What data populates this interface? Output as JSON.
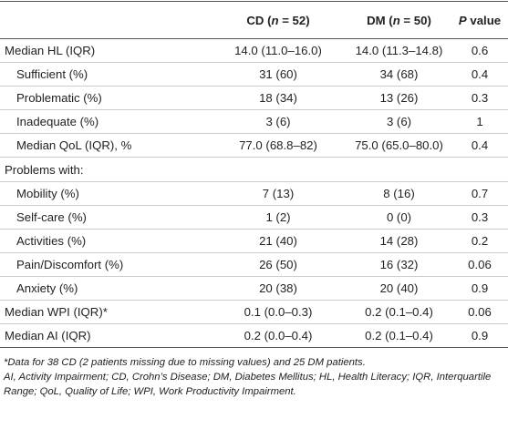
{
  "table": {
    "header": [
      {
        "text": "",
        "parts": []
      },
      {
        "parts": [
          "CD (",
          "n",
          " = 52)"
        ]
      },
      {
        "parts": [
          "DM (",
          "n",
          " = 50)"
        ]
      },
      {
        "parts": [
          "P",
          " value"
        ]
      }
    ],
    "rows": [
      [
        "Median HL (IQR)",
        "14.0 (11.0–16.0)",
        "14.0 (11.3–14.8)",
        "0.6"
      ],
      [
        "Sufficient (%)",
        "31 (60)",
        "34 (68)",
        "0.4"
      ],
      [
        "Problematic (%)",
        "18 (34)",
        "13 (26)",
        "0.3"
      ],
      [
        "Inadequate (%)",
        "3 (6)",
        "3 (6)",
        "1"
      ],
      [
        "Median QoL (IQR), %",
        "77.0 (68.8–82)",
        "75.0 (65.0–80.0)",
        "0.4"
      ],
      [
        "Problems with:"
      ],
      [
        "Mobility (%)",
        "7 (13)",
        "8 (16)",
        "0.7"
      ],
      [
        "Self-care (%)",
        "1 (2)",
        "0 (0)",
        "0.3"
      ],
      [
        "Activities (%)",
        "21 (40)",
        "14 (28)",
        "0.2"
      ],
      [
        "Pain/Discomfort (%)",
        "26 (50)",
        "16 (32)",
        "0.06"
      ],
      [
        "Anxiety (%)",
        "20 (38)",
        "20 (40)",
        "0.9"
      ],
      [
        "Median WPI (IQR)*",
        "0.1 (0.0–0.3)",
        "0.2 (0.1–0.4)",
        "0.06"
      ],
      [
        "Median AI (IQR)",
        "0.2 (0.0–0.4)",
        "0.2 (0.1–0.4)",
        "0.9"
      ]
    ],
    "footnotes": [
      "*Data for 38 CD (2 patients missing due to missing values) and 25 DM patients.",
      "AI, Activity Impairment; CD, Crohn’s Disease; DM, Diabetes Mellitus; HL, Health Literacy; IQR, Interquartile Range; QoL, Quality of Life; WPI, Work Productivity Impairment."
    ]
  }
}
